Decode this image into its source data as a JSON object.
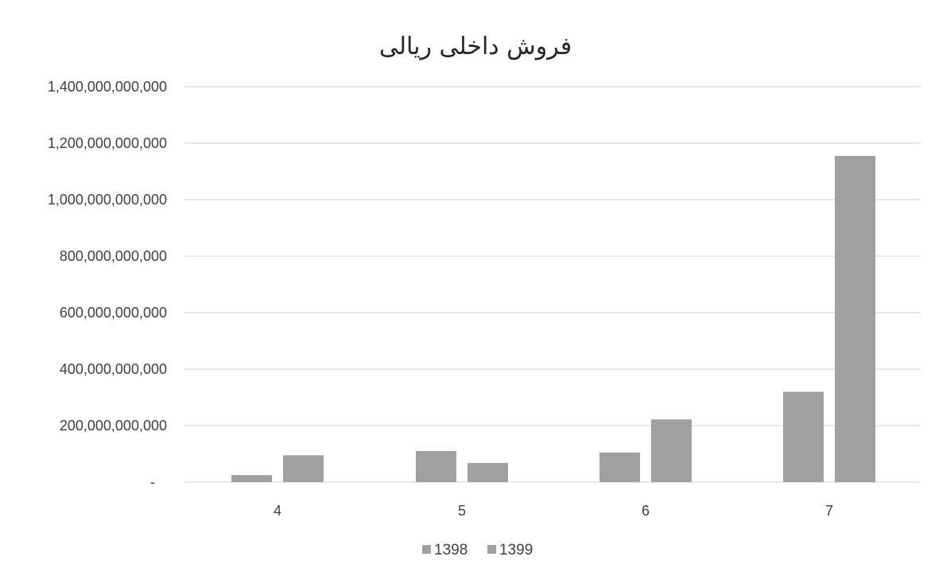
{
  "chart_data": {
    "type": "bar",
    "title": "فروش داخلی ریالی",
    "categories": [
      "4",
      "5",
      "6",
      "7"
    ],
    "series": [
      {
        "name": "1398",
        "values": [
          25000000000,
          110000000000,
          105000000000,
          320000000000
        ]
      },
      {
        "name": "1399",
        "values": [
          95000000000,
          68000000000,
          222000000000,
          1155000000000
        ]
      }
    ],
    "ylim": [
      0,
      1400000000000
    ],
    "y_ticks": [
      "-",
      "200,000,000,000",
      "400,000,000,000",
      "600,000,000,000",
      "800,000,000,000",
      "1,000,000,000,000",
      "1,200,000,000,000",
      "1,400,000,000,000"
    ],
    "grid": true,
    "legend_position": "bottom",
    "xlabel": "",
    "ylabel": "",
    "colors": {
      "1398": "#a0a0a0",
      "1399": "#a0a0a0"
    }
  }
}
